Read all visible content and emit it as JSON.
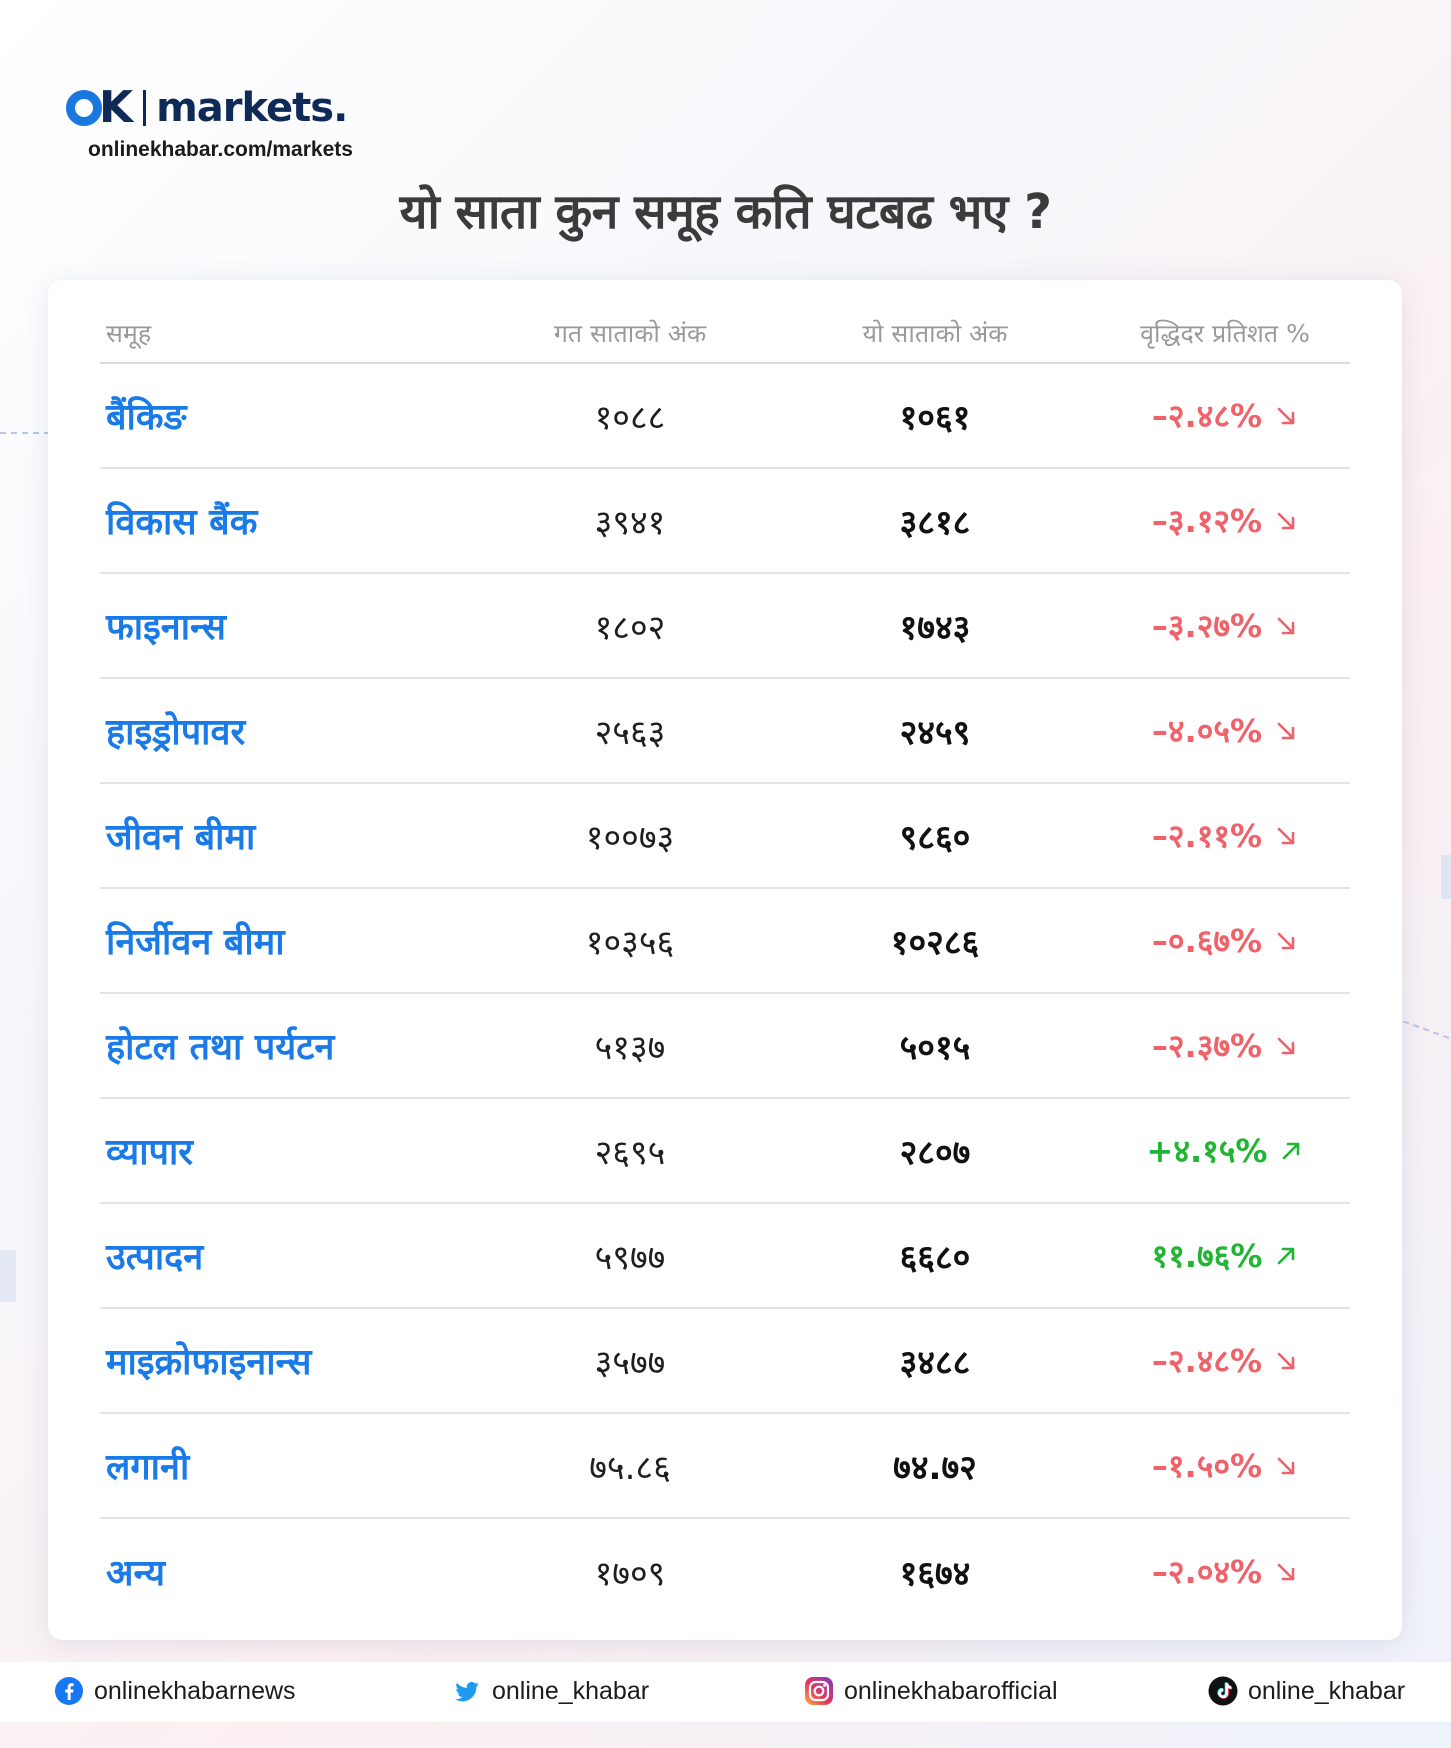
{
  "brand": {
    "logo_text": "markets.",
    "url": "onlinekhabar.com/markets"
  },
  "title": "यो साता कुन समूह कति घटबढ भए ?",
  "table": {
    "headers": {
      "group": "समूह",
      "previous": "गत साताको अंक",
      "current": "यो साताको अंक",
      "change": "वृद्धिदर प्रतिशत %"
    },
    "rows": [
      {
        "name": "बैंकिङ",
        "previous": "१०८८",
        "current": "१०६१",
        "change": "–२.४८%",
        "direction": "down"
      },
      {
        "name": "विकास बैंक",
        "previous": "३९४१",
        "current": "३८१८",
        "change": "–३.१२%",
        "direction": "down"
      },
      {
        "name": "फाइनान्स",
        "previous": "१८०२",
        "current": "१७४३",
        "change": "–३.२७%",
        "direction": "down"
      },
      {
        "name": "हाइड्रोपावर",
        "previous": "२५६३",
        "current": "२४५९",
        "change": "–४.०५%",
        "direction": "down"
      },
      {
        "name": "जीवन बीमा",
        "previous": "१००७३",
        "current": "९८६०",
        "change": "–२.११%",
        "direction": "down"
      },
      {
        "name": "निर्जीवन बीमा",
        "previous": "१०३५६",
        "current": "१०२८६",
        "change": "–०.६७%",
        "direction": "down"
      },
      {
        "name": "होटल तथा पर्यटन",
        "previous": "५१३७",
        "current": "५०१५",
        "change": "–२.३७%",
        "direction": "down"
      },
      {
        "name": "व्यापार",
        "previous": "२६९५",
        "current": "२८०७",
        "change": "+४.१५%",
        "direction": "up"
      },
      {
        "name": "उत्पादन",
        "previous": "५९७७",
        "current": "६६८०",
        "change": "११.७६%",
        "direction": "up"
      },
      {
        "name": "माइक्रोफाइनान्स",
        "previous": "३५७७",
        "current": "३४८८",
        "change": "–२.४८%",
        "direction": "down"
      },
      {
        "name": "लगानी",
        "previous": "७५.८६",
        "current": "७४.७२",
        "change": "–१.५०%",
        "direction": "down"
      },
      {
        "name": "अन्य",
        "previous": "१७०९",
        "current": "१६७४",
        "change": "–२.०४%",
        "direction": "down"
      }
    ]
  },
  "colors": {
    "group_name": "#1a7ae8",
    "down": "#f0626a",
    "up": "#22b533"
  },
  "footer": {
    "facebook": {
      "icon": "facebook-icon",
      "handle": "onlinekhabarnews"
    },
    "twitter": {
      "icon": "twitter-icon",
      "handle": "online_khabar"
    },
    "instagram": {
      "icon": "instagram-icon",
      "handle": "onlinekhabarofficial"
    },
    "tiktok": {
      "icon": "tiktok-icon",
      "handle": "online_khabar"
    }
  }
}
